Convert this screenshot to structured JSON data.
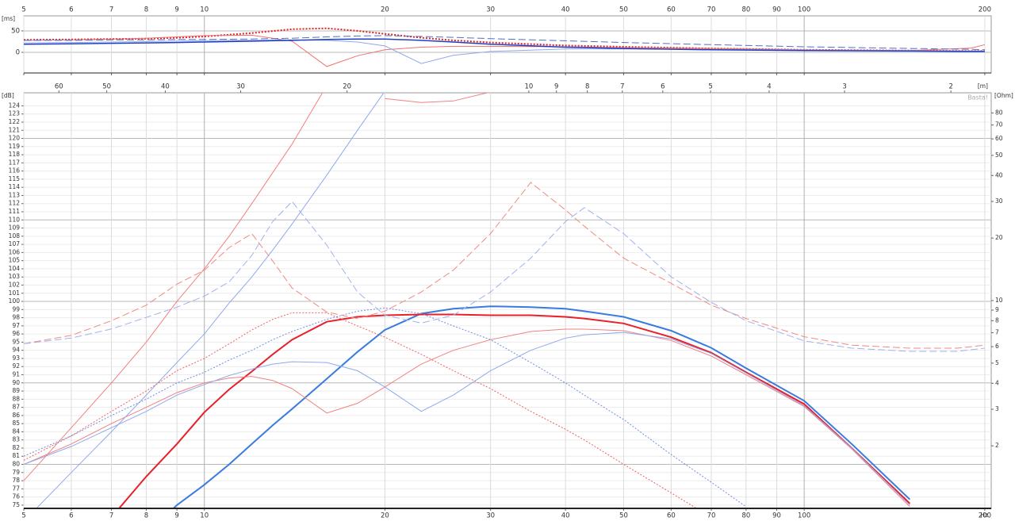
{
  "chart_data": [
    {
      "type": "line",
      "y_label": "[ms]",
      "log_x": true,
      "x": [
        5,
        6,
        7,
        8,
        9,
        10,
        12,
        14,
        16,
        18,
        20,
        23,
        26,
        30,
        40,
        50,
        70,
        100,
        150,
        190,
        200
      ],
      "xlim": [
        5,
        205
      ],
      "xticks": [
        5,
        6,
        7,
        8,
        9,
        10,
        20,
        30,
        40,
        50,
        60,
        70,
        80,
        90,
        100,
        200
      ],
      "ylim": [
        -48,
        85
      ],
      "yticks": [
        0,
        50
      ],
      "grid": true,
      "series": [
        {
          "color": "#e02020",
          "dash": "dotted",
          "width": 2,
          "values": [
            29,
            30,
            31,
            32,
            34,
            37,
            45,
            54,
            56,
            50,
            43,
            34,
            28,
            23,
            16,
            13,
            9,
            6,
            4,
            3,
            3
          ]
        },
        {
          "color": "#f07070",
          "dash": "solid",
          "width": 1,
          "values": [
            28,
            29,
            31,
            33,
            36,
            39,
            40,
            26,
            -33,
            -8,
            6,
            12,
            14,
            14,
            13,
            11,
            9,
            6,
            4,
            10,
            18
          ]
        },
        {
          "color": "#5070c0",
          "dash": "dashed",
          "width": 1,
          "values": [
            28,
            28,
            29,
            29,
            30,
            30,
            31,
            33,
            36,
            38,
            39,
            37,
            35,
            32,
            27,
            23,
            18,
            13,
            9,
            7,
            6
          ]
        },
        {
          "color": "#8fa9ee",
          "dash": "solid",
          "width": 1,
          "values": [
            22,
            23,
            24,
            25,
            26,
            27,
            28,
            29,
            28,
            24,
            15,
            -26,
            -7,
            2,
            8,
            8,
            7,
            5,
            4,
            3,
            3
          ]
        },
        {
          "color": "#2040c0",
          "dash": "solid",
          "width": 1.5,
          "values": [
            19,
            20,
            21,
            22,
            23,
            24,
            26,
            28,
            30,
            31,
            31,
            28,
            24,
            19,
            12,
            9,
            6,
            4,
            3,
            2,
            2
          ]
        }
      ]
    },
    {
      "type": "line",
      "y_label": "[dB]",
      "y2_label": "[Ohm]",
      "top_label": "[m]",
      "x_label": "Hz",
      "watermark": "Basta!",
      "log_x": true,
      "log_y2": true,
      "x": [
        5,
        6,
        7,
        8,
        9,
        10,
        11,
        12,
        13,
        14,
        16,
        18,
        20,
        23,
        26,
        30,
        35,
        40,
        43,
        50,
        60,
        70,
        80,
        100,
        120,
        150,
        180,
        200
      ],
      "xlim": [
        5,
        205
      ],
      "xticks": [
        5,
        6,
        7,
        8,
        9,
        10,
        20,
        30,
        40,
        50,
        60,
        70,
        80,
        90,
        100,
        200
      ],
      "ylim": [
        74.6,
        125.6
      ],
      "yticks": [
        75,
        76,
        77,
        78,
        79,
        80,
        81,
        82,
        83,
        84,
        85,
        86,
        87,
        88,
        89,
        90,
        91,
        92,
        93,
        94,
        95,
        96,
        97,
        98,
        99,
        100,
        101,
        102,
        103,
        104,
        105,
        106,
        107,
        108,
        109,
        110,
        111,
        112,
        113,
        114,
        115,
        116,
        117,
        118,
        119,
        120,
        121,
        122,
        123,
        124
      ],
      "y2lim": [
        1,
        100
      ],
      "y2ticks": [
        2,
        3,
        4,
        5,
        6,
        7,
        8,
        9,
        10,
        20,
        30,
        40,
        50,
        60,
        70,
        80
      ],
      "wavelength_lim": [
        68.6,
        1.715
      ],
      "wavelength_ticks": [
        60,
        50,
        40,
        30,
        20,
        10,
        9,
        8,
        7,
        6,
        5,
        4,
        3,
        2
      ],
      "grid": true,
      "series": [
        {
          "color": "#3a7be0",
          "dash": "solid",
          "width": 2,
          "values": [
            null,
            null,
            null,
            71.5,
            75,
            77.5,
            80,
            82.5,
            84.8,
            86.8,
            90.5,
            93.8,
            96.5,
            98.5,
            99.1,
            99.4,
            99.3,
            99.1,
            98.8,
            98.1,
            96.4,
            94.3,
            91.8,
            87.8,
            82.5,
            75.7,
            null,
            null
          ]
        },
        {
          "color": "#e8202a",
          "dash": "solid",
          "width": 2,
          "values": [
            null,
            null,
            73.5,
            78.5,
            82.5,
            86.4,
            89.2,
            91.4,
            93.5,
            95.3,
            97.5,
            98.1,
            98.3,
            98.4,
            98.4,
            98.3,
            98.3,
            98.1,
            97.9,
            97.3,
            95.6,
            93.7,
            91.3,
            87.4,
            82,
            75.2,
            null,
            null
          ]
        },
        {
          "color": "#f28080",
          "dash": "solid",
          "width": 1,
          "values": [
            80,
            82.5,
            85,
            87,
            88.8,
            90,
            90.6,
            90.8,
            90.3,
            89.3,
            86.3,
            87.5,
            89.5,
            92.3,
            94,
            95.3,
            96.3,
            96.6,
            96.6,
            96.4,
            95.2,
            93.3,
            91,
            87.1,
            81.9,
            74.8,
            null,
            null
          ]
        },
        {
          "color": "#8fa9ee",
          "dash": "solid",
          "width": 1,
          "values": [
            80,
            82.2,
            84.5,
            86.5,
            88.5,
            89.8,
            90.9,
            91.7,
            92.3,
            92.6,
            92.5,
            91.5,
            89.5,
            86.5,
            88.5,
            91.5,
            94,
            95.5,
            95.9,
            96.2,
            95.4,
            93.6,
            91.2,
            87.2,
            82,
            75,
            null,
            null
          ]
        },
        {
          "color": "#f28080",
          "dash": "solid",
          "width": 1,
          "values": [
            78,
            84.5,
            90,
            95,
            100,
            104,
            108,
            112,
            115.8,
            119.3,
            126.5,
            null,
            124.9,
            124.4,
            124.6,
            125.7,
            null,
            null,
            null,
            null,
            null,
            null,
            null,
            null,
            null,
            null,
            null,
            null
          ]
        },
        {
          "color": "#8fa9ee",
          "dash": "solid",
          "width": 1,
          "values": [
            73,
            79,
            84,
            88.5,
            92.5,
            96,
            99.8,
            103,
            106.3,
            109.5,
            115.5,
            121,
            125.8,
            null,
            null,
            null,
            null,
            null,
            null,
            null,
            null,
            null,
            null,
            null,
            null,
            null,
            null,
            null
          ]
        },
        {
          "color": "#f06060",
          "dash": "dotted",
          "width": 1,
          "values": [
            80.5,
            83.5,
            86.5,
            89,
            91.5,
            93,
            94.8,
            96.5,
            97.8,
            98.6,
            98.6,
            97,
            95.6,
            93.5,
            91.5,
            89.3,
            86.5,
            84.3,
            83,
            80,
            76.5,
            73.5,
            null,
            null,
            null,
            null,
            null,
            null
          ]
        },
        {
          "color": "#6f8fe6",
          "dash": "dotted",
          "width": 1,
          "values": [
            81,
            83.5,
            86,
            88,
            90,
            91.3,
            92.8,
            94,
            95.3,
            96.3,
            97.8,
            98.8,
            99.2,
            98.5,
            97,
            95.3,
            92.5,
            90,
            88.5,
            85.5,
            81.2,
            77.8,
            74.8,
            null,
            null,
            null,
            null,
            null
          ]
        },
        {
          "color": "#f08a80",
          "dash": "dashed",
          "width": 1,
          "axis": "y2",
          "values": [
            6.2,
            6.8,
            8,
            9.5,
            12,
            14,
            18,
            21,
            15.5,
            11.5,
            8.8,
            8.2,
            8.9,
            11,
            14,
            21,
            37,
            27.3,
            22.8,
            16,
            12.1,
            9.5,
            8.2,
            6.7,
            6.1,
            5.9,
            5.9,
            6.1
          ]
        },
        {
          "color": "#9fb2ee",
          "dash": "dashed",
          "width": 1,
          "axis": "y2",
          "values": [
            6.2,
            6.6,
            7.3,
            8.3,
            9.3,
            10.5,
            12.3,
            16.5,
            24,
            30,
            18.5,
            11,
            8.5,
            7.8,
            8.5,
            11,
            16,
            24,
            28,
            21,
            13,
            9.8,
            8,
            6.4,
            5.9,
            5.7,
            5.7,
            5.9
          ]
        }
      ]
    }
  ]
}
